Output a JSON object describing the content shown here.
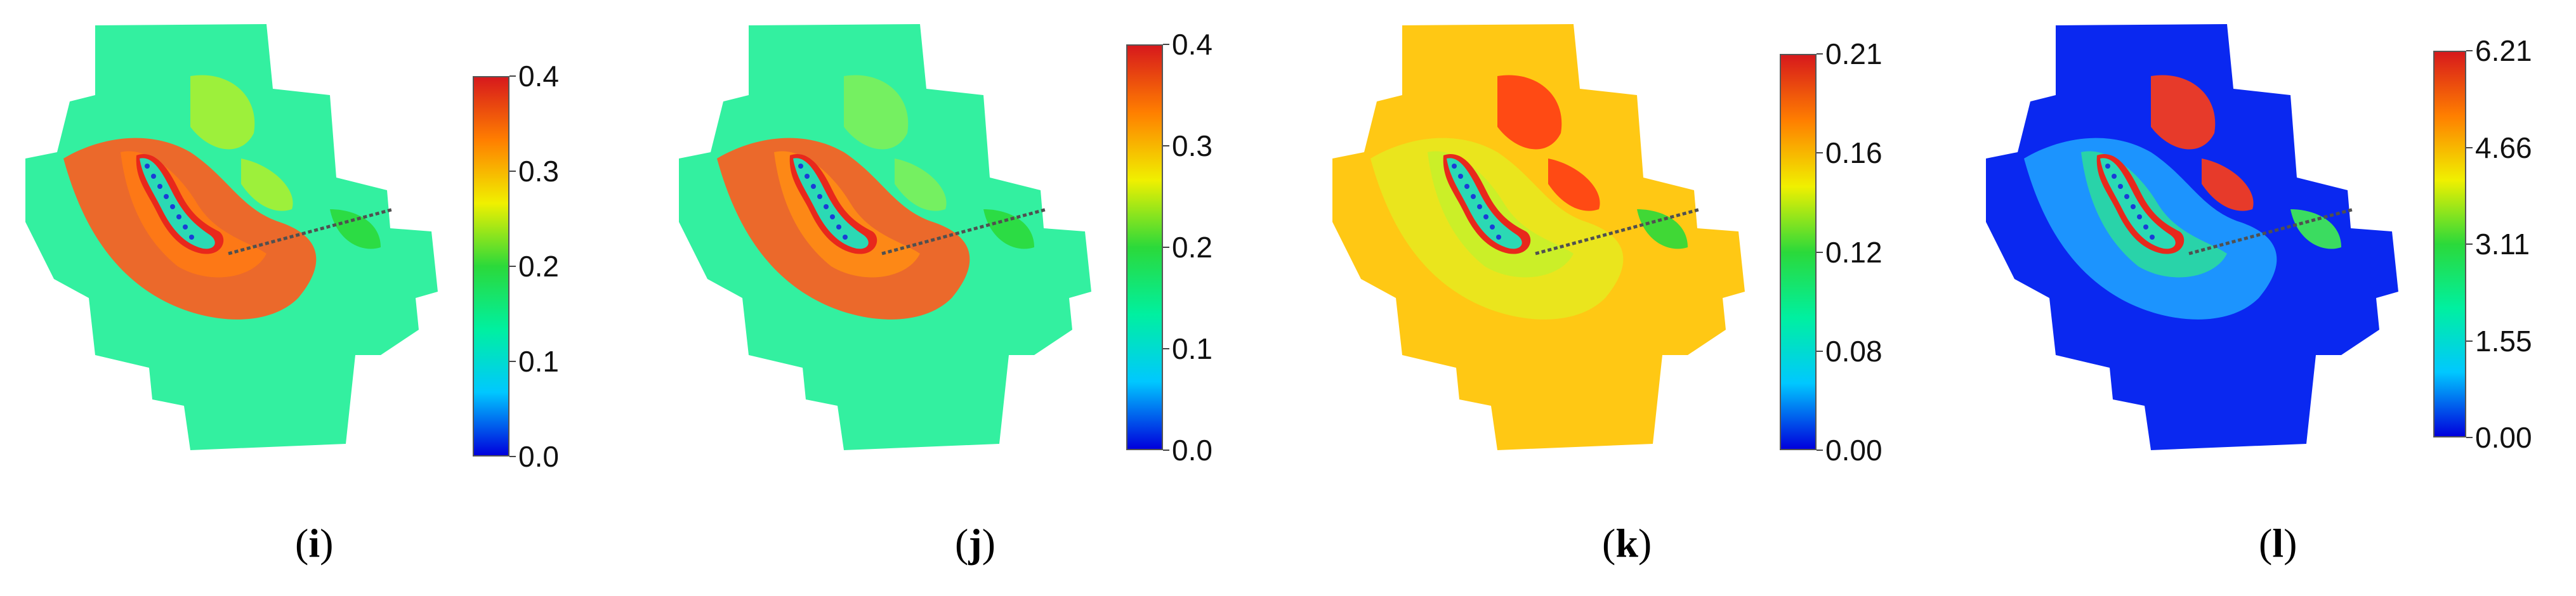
{
  "chart_data": [
    {
      "type": "heatmap",
      "panel_label": "i",
      "colorbar": {
        "ticks": [
          "0.4",
          "0.3",
          "0.2",
          "0.1",
          "0.0"
        ],
        "range": [
          0.0,
          0.4
        ],
        "colors": [
          "#d7191c",
          "#ff7f00",
          "#f0f000",
          "#2bd93a",
          "#00f0a0",
          "#00c8ff",
          "#0000dc"
        ]
      },
      "background_color": "#33f0a0",
      "field_colors": [
        "#ff5a1e",
        "#ff7a14",
        "#a8f030",
        "#2bd93a"
      ]
    },
    {
      "type": "heatmap",
      "panel_label": "j",
      "colorbar": {
        "ticks": [
          "0.4",
          "0.3",
          "0.2",
          "0.1",
          "0.0"
        ],
        "range": [
          0.0,
          0.4
        ],
        "colors": [
          "#d7191c",
          "#ff7f00",
          "#f0f000",
          "#2bd93a",
          "#00f0a0",
          "#00c8ff",
          "#0000dc"
        ]
      },
      "background_color": "#33f0a0",
      "field_colors": [
        "#ff5a1e",
        "#ff8c14",
        "#7cf05a",
        "#2bd93a"
      ]
    },
    {
      "type": "heatmap",
      "panel_label": "k",
      "colorbar": {
        "ticks": [
          "0.21",
          "0.16",
          "0.12",
          "0.08",
          "0.00"
        ],
        "range": [
          0.0,
          0.21
        ],
        "colors": [
          "#d7191c",
          "#ff7f00",
          "#f0f000",
          "#2bd93a",
          "#00f0a0",
          "#00c8ff",
          "#0000dc"
        ]
      },
      "background_color": "#ffc814",
      "field_colors": [
        "#e8e81e",
        "#c8f02a",
        "#ff3c14",
        "#2bd93a"
      ]
    },
    {
      "type": "heatmap",
      "panel_label": "l",
      "colorbar": {
        "ticks": [
          "6.21",
          "4.66",
          "3.11",
          "1.55",
          "0.00"
        ],
        "range": [
          0.0,
          6.21
        ],
        "colors": [
          "#d7191c",
          "#ff7f00",
          "#f0f000",
          "#2bd93a",
          "#00f0a0",
          "#00c8ff",
          "#0000dc"
        ]
      },
      "background_color": "#0a28f0",
      "field_colors": [
        "#1ea0ff",
        "#2bd9a0",
        "#ff3c14",
        "#40f050"
      ]
    }
  ]
}
